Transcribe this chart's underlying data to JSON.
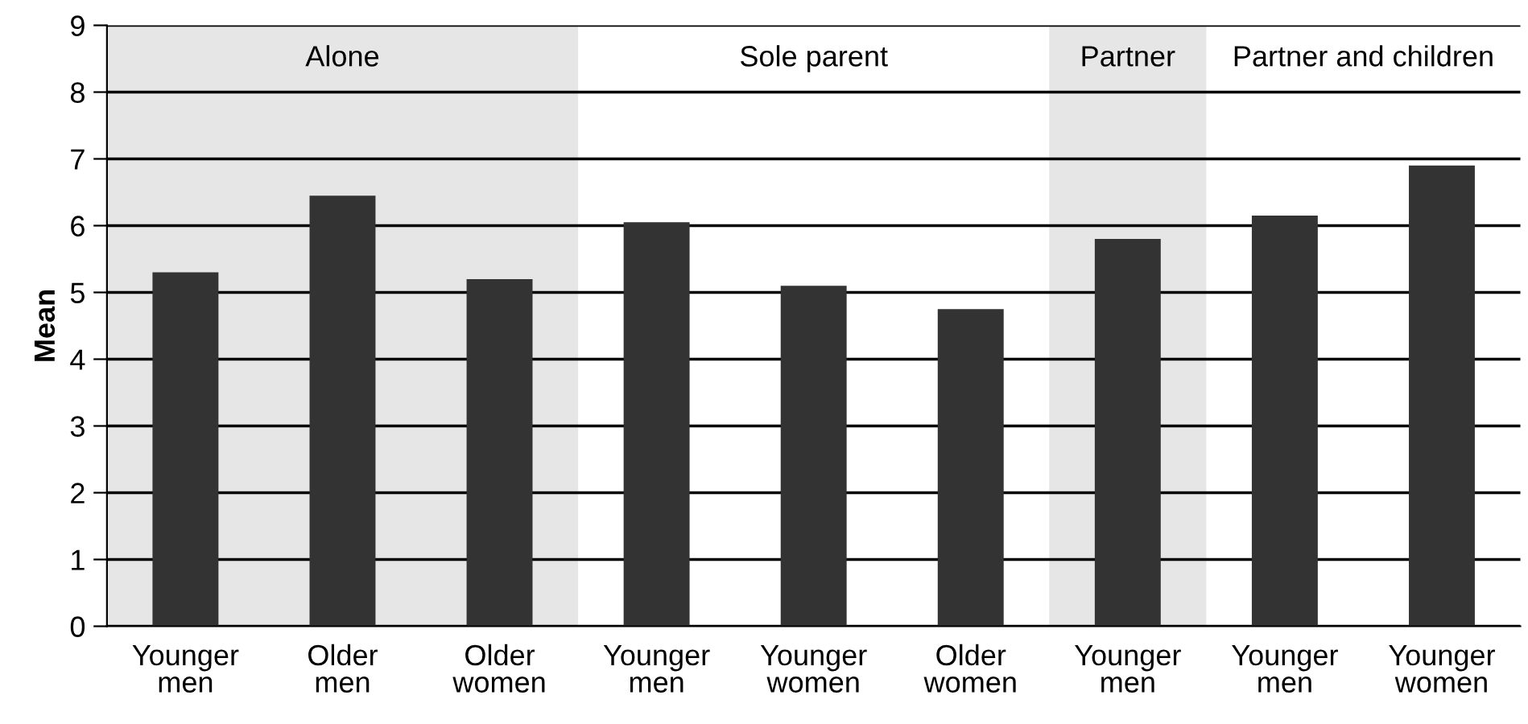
{
  "chart_data": {
    "type": "bar",
    "ylabel": "Mean",
    "categories": [
      "Younger\nmen",
      "Older\nmen",
      "Older\nwomen",
      "Younger\nmen",
      "Younger\nwomen",
      "Older\nwomen",
      "Younger\nmen",
      "Younger\nmen",
      "Younger\nwomen"
    ],
    "values": [
      5.3,
      6.45,
      5.2,
      6.05,
      5.1,
      4.75,
      5.8,
      6.15,
      6.9
    ],
    "color": "#333333",
    "ylim": [
      0,
      9
    ],
    "yticks": [
      0,
      1,
      2,
      3,
      4,
      5,
      6,
      7,
      8,
      9
    ],
    "grid": "y",
    "annotations": [
      "Alone",
      "Sole parent",
      "Partner",
      "Partner and children"
    ]
  }
}
